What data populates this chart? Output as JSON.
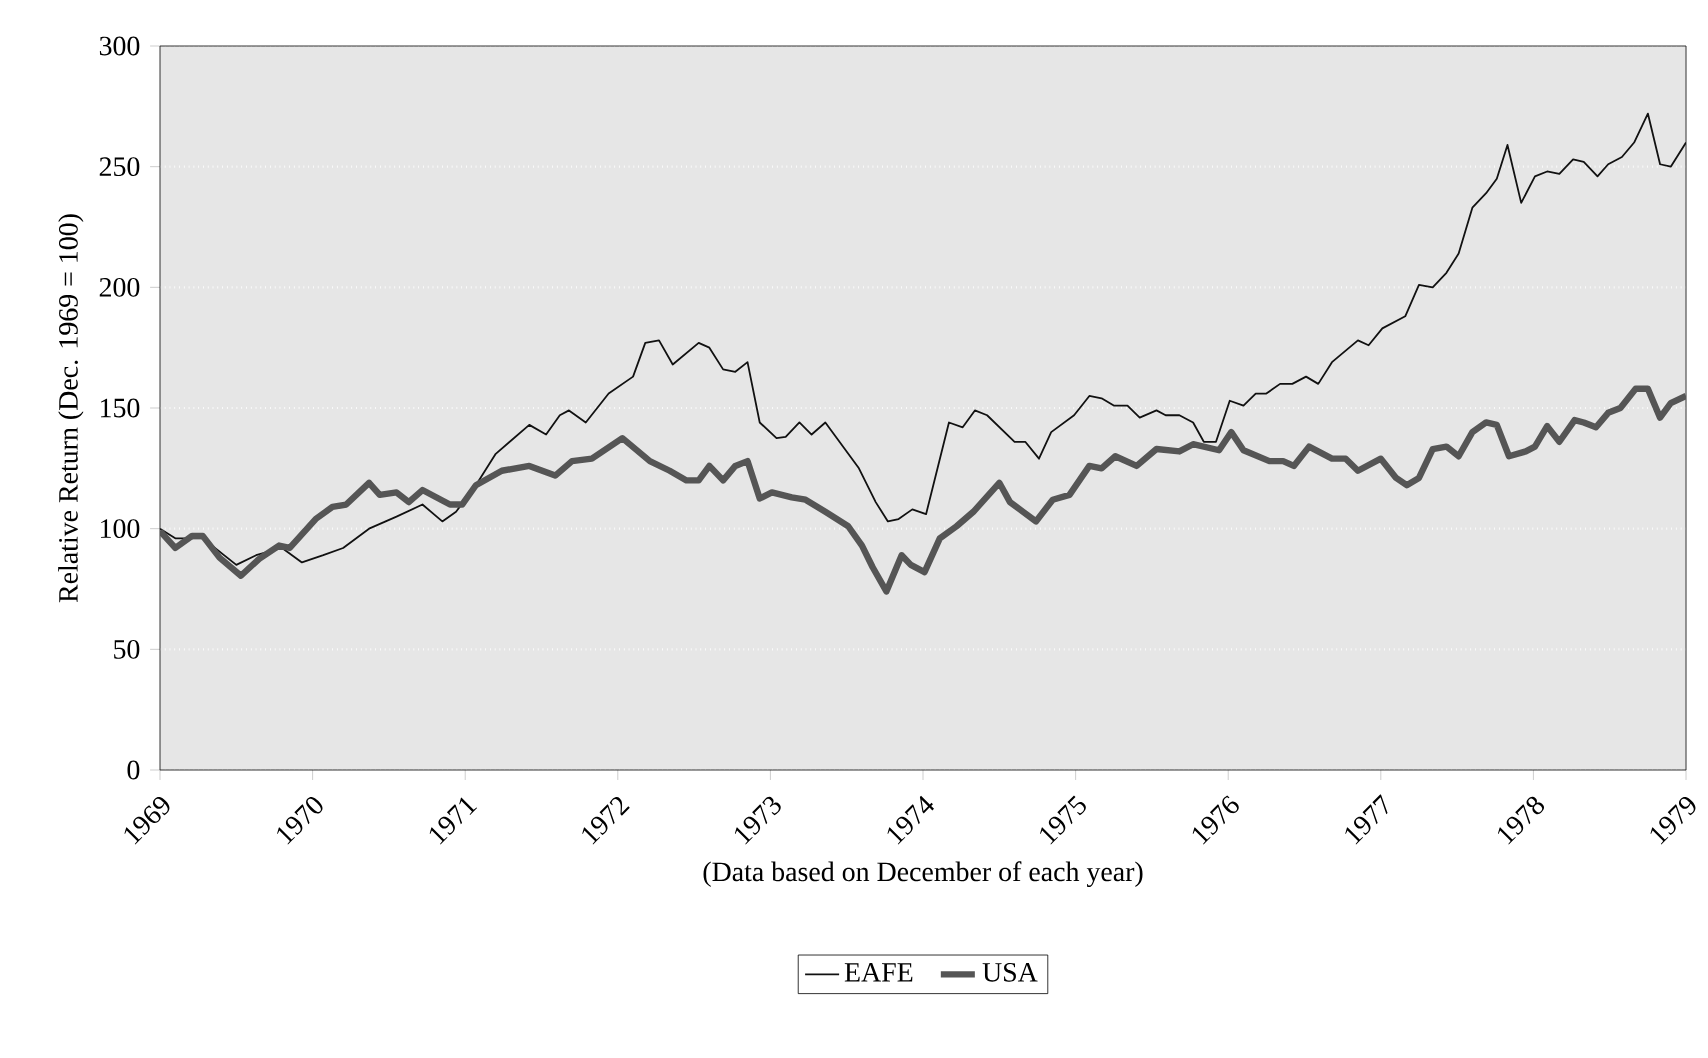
{
  "chart_data": {
    "type": "line",
    "xlabel": "(Data based on December of each year)",
    "ylabel": "Relative Return (Dec. 1969 = 100)",
    "xlim": [
      1969,
      1979
    ],
    "xticks": [
      1969,
      1970,
      1971,
      1972,
      1973,
      1974,
      1975,
      1976,
      1977,
      1978,
      1979
    ],
    "ylim": [
      0,
      300
    ],
    "yticks": [
      0,
      50,
      100,
      150,
      200,
      250,
      300
    ],
    "grid": "y",
    "legend": "bottom",
    "line_style": "solid",
    "marker": "none",
    "series": [
      {
        "name": "EAFE",
        "color": "#111111",
        "x": [
          1969.0,
          1969.1,
          1969.28,
          1969.5,
          1969.63,
          1969.8,
          1969.93,
          1970.07,
          1970.2,
          1970.37,
          1970.55,
          1970.72,
          1970.85,
          1970.94,
          1971.07,
          1971.2,
          1971.42,
          1971.53,
          1971.62,
          1971.68,
          1971.79,
          1971.94,
          1972.1,
          1972.18,
          1972.27,
          1972.36,
          1972.53,
          1972.6,
          1972.69,
          1972.77,
          1972.85,
          1972.93,
          1973.04,
          1973.1,
          1973.19,
          1973.27,
          1973.36,
          1973.58,
          1973.69,
          1973.77,
          1973.84,
          1973.93,
          1974.02,
          1974.17,
          1974.26,
          1974.34,
          1974.42,
          1974.6,
          1974.67,
          1974.76,
          1974.84,
          1974.99,
          1975.09,
          1975.17,
          1975.25,
          1975.34,
          1975.42,
          1975.53,
          1975.59,
          1975.68,
          1975.77,
          1975.84,
          1975.92,
          1976.01,
          1976.1,
          1976.18,
          1976.25,
          1976.34,
          1976.42,
          1976.51,
          1976.59,
          1976.68,
          1976.85,
          1976.92,
          1977.01,
          1977.16,
          1977.25,
          1977.34,
          1977.43,
          1977.51,
          1977.6,
          1977.69,
          1977.76,
          1977.83,
          1977.92,
          1978.01,
          1978.09,
          1978.17,
          1978.26,
          1978.33,
          1978.42,
          1978.49,
          1978.58,
          1978.66,
          1978.75,
          1978.83,
          1978.9,
          1979.0
        ],
        "values": [
          100,
          96,
          96,
          85,
          89,
          92,
          86,
          89,
          92,
          100,
          105,
          110,
          103,
          107,
          118,
          131,
          143,
          139,
          147,
          149,
          144,
          156,
          163,
          177,
          178,
          168,
          177,
          175,
          166,
          165,
          169,
          144,
          137.5,
          138,
          144,
          139,
          144,
          125,
          111,
          103,
          104,
          108,
          106,
          144,
          142,
          149,
          147,
          136,
          136,
          129,
          140,
          147,
          155,
          154,
          151,
          151,
          146,
          149,
          147,
          147,
          144,
          136,
          136,
          153,
          151,
          156,
          156,
          160,
          160,
          163,
          160,
          169,
          178,
          176,
          183,
          188,
          201,
          200,
          206,
          214,
          233,
          239,
          245,
          259,
          235,
          246,
          248,
          247,
          253,
          252,
          246,
          251,
          254,
          260,
          272,
          251,
          250,
          260
        ]
      },
      {
        "name": "USA",
        "color": "#555555",
        "x": [
          1969.0,
          1969.1,
          1969.21,
          1969.28,
          1969.39,
          1969.53,
          1969.65,
          1969.78,
          1969.85,
          1970.02,
          1970.13,
          1970.22,
          1970.37,
          1970.44,
          1970.55,
          1970.63,
          1970.72,
          1970.81,
          1970.9,
          1970.98,
          1971.07,
          1971.24,
          1971.42,
          1971.59,
          1971.7,
          1971.83,
          1972.03,
          1972.21,
          1972.34,
          1972.45,
          1972.53,
          1972.6,
          1972.69,
          1972.77,
          1972.85,
          1972.93,
          1973.01,
          1973.14,
          1973.23,
          1973.36,
          1973.51,
          1973.6,
          1973.67,
          1973.76,
          1973.86,
          1973.92,
          1974.01,
          1974.11,
          1974.22,
          1974.33,
          1974.5,
          1974.57,
          1974.74,
          1974.85,
          1974.96,
          1975.09,
          1975.17,
          1975.26,
          1975.4,
          1975.53,
          1975.68,
          1975.77,
          1975.94,
          1976.02,
          1976.1,
          1976.27,
          1976.36,
          1976.43,
          1976.53,
          1976.68,
          1976.77,
          1976.85,
          1977.0,
          1977.1,
          1977.17,
          1977.25,
          1977.34,
          1977.43,
          1977.51,
          1977.6,
          1977.69,
          1977.76,
          1977.84,
          1977.95,
          1978.01,
          1978.09,
          1978.17,
          1978.27,
          1978.33,
          1978.41,
          1978.49,
          1978.57,
          1978.67,
          1978.75,
          1978.83,
          1978.9,
          1979.0
        ],
        "values": [
          99,
          92,
          97,
          97,
          88,
          80.5,
          87.5,
          93,
          92,
          104,
          109,
          110,
          119,
          114,
          115,
          111,
          116,
          113,
          110,
          110,
          118,
          124,
          126,
          122,
          128,
          129,
          137.5,
          128,
          124,
          120,
          120,
          126,
          120,
          126,
          128,
          112.5,
          115,
          113,
          112,
          107,
          101,
          93,
          84,
          74,
          89,
          85,
          82,
          96,
          101,
          107,
          119,
          111,
          103,
          112,
          114,
          126,
          125,
          130,
          126,
          133,
          132,
          135,
          132.5,
          140,
          132.5,
          128,
          128,
          126,
          134,
          129,
          129,
          124,
          129,
          121,
          118,
          121,
          133,
          134,
          130,
          140,
          144,
          143,
          130,
          132,
          134,
          142.5,
          136,
          145,
          144,
          142,
          148,
          150,
          158,
          158,
          146,
          152,
          155
        ]
      }
    ]
  }
}
